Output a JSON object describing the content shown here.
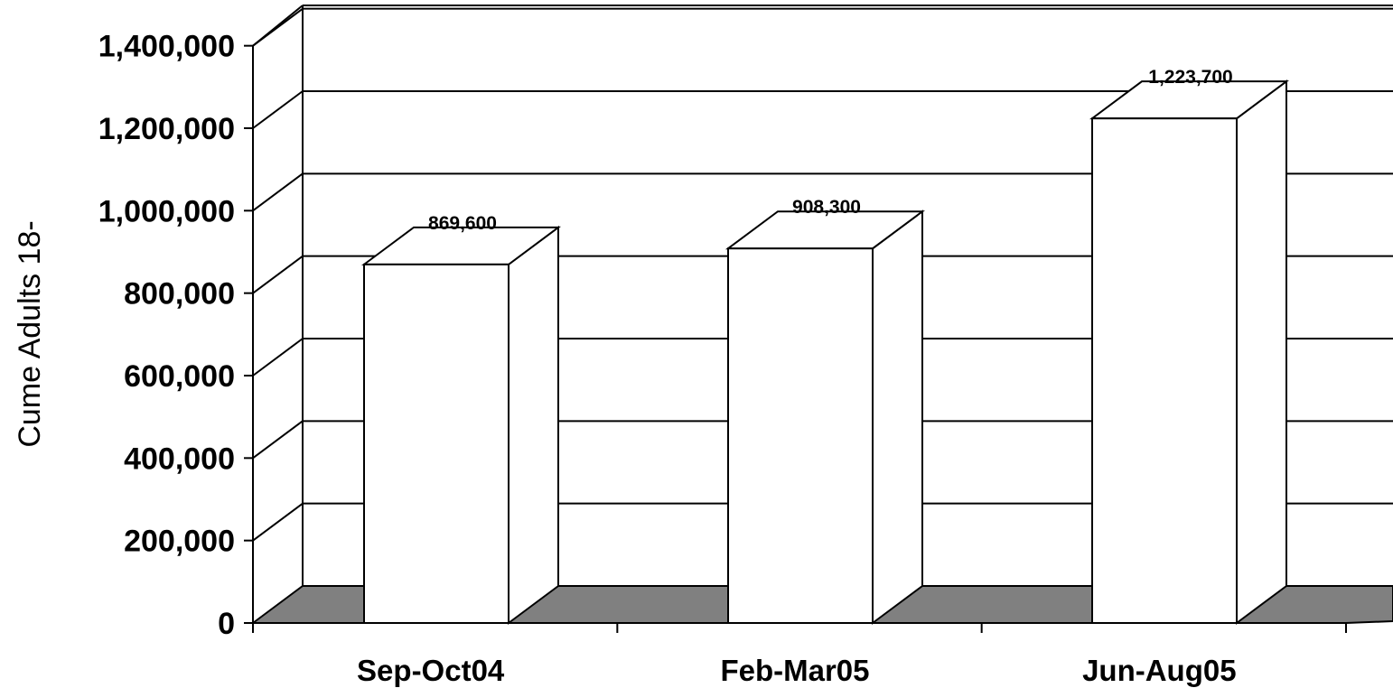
{
  "chart_data": {
    "type": "bar",
    "style": "3d-column",
    "categories": [
      "Sep-Oct04",
      "Feb-Mar05",
      "Jun-Aug05"
    ],
    "values": [
      869600,
      908300,
      1223700
    ],
    "data_labels": [
      "869,600",
      "908,300",
      "1,223,700"
    ],
    "ylabel": "Cume Adults 18-",
    "xlabel": "",
    "ylim": [
      0,
      1400000
    ],
    "yticks": [
      0,
      200000,
      400000,
      600000,
      800000,
      1000000,
      1200000,
      1400000
    ],
    "ytick_labels": [
      "0",
      "200,000",
      "400,000",
      "600,000",
      "800,000",
      "1,000,000",
      "1,200,000",
      "1,400,000"
    ],
    "grid": true,
    "legend": "none",
    "colors": {
      "bar_fill": "#ffffff",
      "floor": "#808080",
      "lines": "#000000"
    }
  }
}
